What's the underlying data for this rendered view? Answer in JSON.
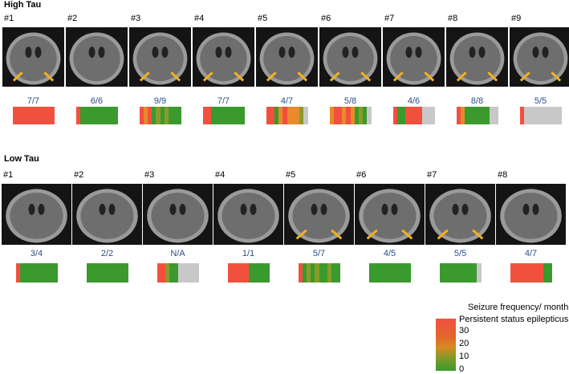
{
  "panels": [
    {
      "title": "High Tau",
      "items": [
        {
          "label": "#1",
          "ratio": "7/7",
          "arrows": true,
          "bar": [
            "#f2503f",
            "#f2503f",
            "#f2503f",
            "#f2503f",
            "#f2503f",
            "#f2503f",
            "#f2503f",
            "#f2503f",
            "#f2503f",
            "#f2503f"
          ]
        },
        {
          "label": "#2",
          "ratio": "6/6",
          "arrows": false,
          "bar": [
            "#f2503f",
            "#3a9a2e",
            "#3a9a2e",
            "#3a9a2e",
            "#3a9a2e",
            "#3a9a2e",
            "#3a9a2e",
            "#3a9a2e",
            "#3a9a2e",
            "#3a9a2e"
          ]
        },
        {
          "label": "#3",
          "ratio": "9/9",
          "arrows": true,
          "bar": [
            "#f2503f",
            "#e88a2a",
            "#f2503f",
            "#3a9a2e",
            "#8a9a2a",
            "#3a9a2e",
            "#8a9a2a",
            "#3a9a2e",
            "#3a9a2e",
            "#3a9a2e"
          ]
        },
        {
          "label": "#4",
          "ratio": "7/7",
          "arrows": true,
          "bar": [
            "#f2503f",
            "#f2503f",
            "#3a9a2e",
            "#3a9a2e",
            "#3a9a2e",
            "#3a9a2e",
            "#3a9a2e",
            "#3a9a2e",
            "#3a9a2e",
            "#3a9a2e"
          ]
        },
        {
          "label": "#5",
          "ratio": "4/7",
          "arrows": true,
          "bar": [
            "#f2503f",
            "#f2503f",
            "#3a9a2e",
            "#e88a2a",
            "#f2503f",
            "#e88a2a",
            "#e88a2a",
            "#e88a2a",
            "#8a9a2a",
            "#c8c8c8"
          ]
        },
        {
          "label": "#6",
          "ratio": "5/8",
          "arrows": true,
          "bar": [
            "#e88a2a",
            "#f2503f",
            "#f2503f",
            "#e88a2a",
            "#f2503f",
            "#e88a2a",
            "#3a9a2e",
            "#8a9a2a",
            "#3a9a2e",
            "#c8c8c8"
          ]
        },
        {
          "label": "#7",
          "ratio": "4/6",
          "arrows": true,
          "bar": [
            "#f2503f",
            "#3a9a2e",
            "#3a9a2e",
            "#f2503f",
            "#f2503f",
            "#f2503f",
            "#f2503f",
            "#c8c8c8",
            "#c8c8c8",
            "#c8c8c8"
          ]
        },
        {
          "label": "#8",
          "ratio": "8/8",
          "arrows": true,
          "bar": [
            "#f2503f",
            "#e88a2a",
            "#3a9a2e",
            "#3a9a2e",
            "#3a9a2e",
            "#3a9a2e",
            "#3a9a2e",
            "#3a9a2e",
            "#c8c8c8",
            "#c8c8c8"
          ]
        },
        {
          "label": "#9",
          "ratio": "5/5",
          "arrows": true,
          "bar": [
            "#f2503f",
            "#c8c8c8",
            "#c8c8c8",
            "#c8c8c8",
            "#c8c8c8",
            "#c8c8c8",
            "#c8c8c8",
            "#c8c8c8",
            "#c8c8c8",
            "#c8c8c8"
          ]
        }
      ]
    },
    {
      "title": "Low Tau",
      "items": [
        {
          "label": "#1",
          "ratio": "3/4",
          "arrows": false,
          "bar": [
            "#f2503f",
            "#3a9a2e",
            "#3a9a2e",
            "#3a9a2e",
            "#3a9a2e",
            "#3a9a2e",
            "#3a9a2e",
            "#3a9a2e",
            "#3a9a2e",
            "#3a9a2e"
          ]
        },
        {
          "label": "#2",
          "ratio": "2/2",
          "arrows": false,
          "bar": [
            "#3a9a2e",
            "#3a9a2e",
            "#3a9a2e",
            "#3a9a2e",
            "#3a9a2e",
            "#3a9a2e",
            "#3a9a2e",
            "#3a9a2e",
            "#3a9a2e",
            "#3a9a2e"
          ]
        },
        {
          "label": "#3",
          "ratio": "N/A",
          "arrows": false,
          "bar": [
            "#f2503f",
            "#f2503f",
            "#8a9a2a",
            "#3a9a2e",
            "#3a9a2e",
            "#c8c8c8",
            "#c8c8c8",
            "#c8c8c8",
            "#c8c8c8",
            "#c8c8c8"
          ]
        },
        {
          "label": "#4",
          "ratio": "1/1",
          "arrows": false,
          "bar": [
            "#f2503f",
            "#f2503f",
            "#f2503f",
            "#f2503f",
            "#f2503f",
            "#3a9a2e",
            "#3a9a2e",
            "#3a9a2e",
            "#3a9a2e",
            "#3a9a2e"
          ]
        },
        {
          "label": "#5",
          "ratio": "5/7",
          "arrows": true,
          "bar": [
            "#f2503f",
            "#3a9a2e",
            "#8a9a2a",
            "#3a9a2e",
            "#8a9a2a",
            "#3a9a2e",
            "#3a9a2e",
            "#8a9a2a",
            "#3a9a2e",
            "#3a9a2e"
          ]
        },
        {
          "label": "#6",
          "ratio": "4/5",
          "arrows": true,
          "bar": [
            "#3a9a2e",
            "#3a9a2e",
            "#3a9a2e",
            "#3a9a2e",
            "#3a9a2e",
            "#3a9a2e",
            "#3a9a2e",
            "#3a9a2e",
            "#3a9a2e",
            "#3a9a2e"
          ]
        },
        {
          "label": "#7",
          "ratio": "5/5",
          "arrows": true,
          "bar": [
            "#3a9a2e",
            "#3a9a2e",
            "#3a9a2e",
            "#3a9a2e",
            "#3a9a2e",
            "#3a9a2e",
            "#3a9a2e",
            "#3a9a2e",
            "#3a9a2e",
            "#c8c8c8"
          ]
        },
        {
          "label": "#8",
          "ratio": "4/7",
          "arrows": false,
          "bar": [
            "#f2503f",
            "#f2503f",
            "#f2503f",
            "#f2503f",
            "#f2503f",
            "#f2503f",
            "#f2503f",
            "#f2503f",
            "#3a9a2e",
            "#3a9a2e"
          ]
        }
      ]
    }
  ],
  "legend": {
    "title": "Seizure frequency/ month",
    "top_label": "Persistent status epilepticus",
    "ticks": [
      30,
      20,
      10,
      0
    ]
  }
}
